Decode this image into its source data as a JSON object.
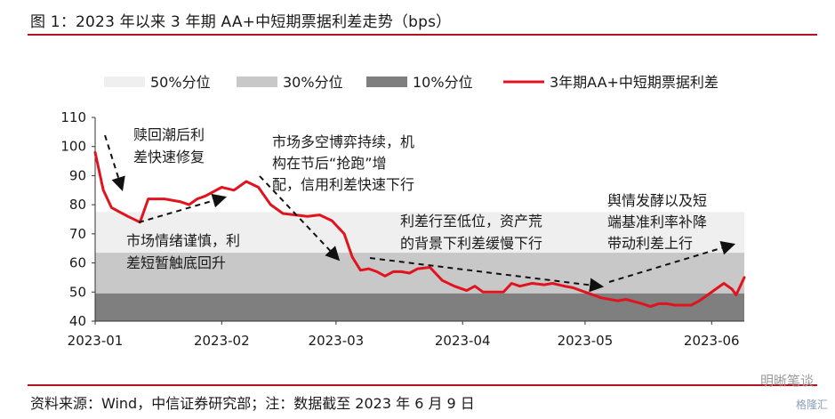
{
  "figure_title": "图 1：2023 年以来 3 年期 AA+中短期票据利差走势（bps）",
  "source_note": "资料来源：Wind，中信证券研究部；注：数据截至 2023 年 6 月 9 日",
  "watermark": "明晰笔谈",
  "watermark2": "格隆汇",
  "chart_data": {
    "type": "line",
    "title": "",
    "xlabel": "",
    "ylabel": "",
    "ylim": [
      40,
      110
    ],
    "y_ticks": [
      40,
      50,
      60,
      70,
      80,
      90,
      100,
      110
    ],
    "x_ticks": [
      "2023-01",
      "2023-02",
      "2023-03",
      "2023-04",
      "2023-05",
      "2023-06"
    ],
    "grid": false,
    "legend_position": "top",
    "bands": [
      {
        "name": "50%分位",
        "color": "#efefef",
        "upper": 77.5
      },
      {
        "name": "30%分位",
        "color": "#c8c8c8",
        "upper": 63.5
      },
      {
        "name": "10%分位",
        "color": "#7f7f7f",
        "upper": 49.5
      }
    ],
    "series": [
      {
        "name": "3年期AA+中短期票据利差",
        "color": "#e0141e",
        "x": [
          "2023-01-01",
          "2023-01-03",
          "2023-01-05",
          "2023-01-09",
          "2023-01-12",
          "2023-01-14",
          "2023-01-18",
          "2023-01-22",
          "2023-01-24",
          "2023-01-26",
          "2023-01-28",
          "2023-02-01",
          "2023-02-04",
          "2023-02-07",
          "2023-02-10",
          "2023-02-11",
          "2023-02-13",
          "2023-02-16",
          "2023-02-19",
          "2023-02-22",
          "2023-02-25",
          "2023-02-28",
          "2023-03-03",
          "2023-03-05",
          "2023-03-07",
          "2023-03-09",
          "2023-03-11",
          "2023-03-13",
          "2023-03-15",
          "2023-03-17",
          "2023-03-19",
          "2023-03-21",
          "2023-03-24",
          "2023-03-27",
          "2023-03-30",
          "2023-04-02",
          "2023-04-04",
          "2023-04-06",
          "2023-04-08",
          "2023-04-11",
          "2023-04-13",
          "2023-04-15",
          "2023-04-18",
          "2023-04-21",
          "2023-04-23",
          "2023-04-26",
          "2023-04-28",
          "2023-05-01",
          "2023-05-05",
          "2023-05-09",
          "2023-05-11",
          "2023-05-15",
          "2023-05-17",
          "2023-05-19",
          "2023-05-21",
          "2023-05-23",
          "2023-05-25",
          "2023-05-27",
          "2023-05-29",
          "2023-05-31",
          "2023-06-02",
          "2023-06-04",
          "2023-06-06",
          "2023-06-07",
          "2023-06-09"
        ],
        "y": [
          98,
          85,
          79,
          76,
          74,
          82,
          82,
          81,
          80,
          82,
          83,
          86,
          85,
          88,
          86,
          84,
          80,
          77,
          76.5,
          76,
          76.5,
          74.5,
          70,
          62,
          57.5,
          58,
          57,
          55.5,
          57,
          57,
          56.5,
          58,
          58.5,
          54,
          52,
          50.5,
          52,
          50,
          50,
          50,
          53,
          52,
          53,
          52.5,
          53,
          52,
          51.5,
          50,
          48,
          47,
          47.5,
          46,
          45,
          46,
          46,
          45.5,
          45.5,
          45.5,
          47,
          49,
          51,
          53,
          51,
          49,
          55
        ]
      }
    ],
    "annotations": [
      {
        "text": "赎回潮后利差快速修复",
        "lines": [
          "赎回潮后利",
          "差快速修复"
        ]
      },
      {
        "text": "市场情绪谨慎，利差短暂触底回升",
        "lines": [
          "市场情绪谨慎，利",
          "差短暂触底回升"
        ]
      },
      {
        "text": "市场多空博弈持续，机构在节后“抢跑”增配，信用利差快速下行",
        "lines": [
          "市场多空博弈持续，机",
          "构在节后“抢跑”增",
          "配，信用利差快速下行"
        ]
      },
      {
        "text": "利差行至低位，资产荒的背景下利差缓慢下行",
        "lines": [
          "利差行至低位，资产荒",
          "的背景下利差缓慢下行"
        ]
      },
      {
        "text": "舆情发酵以及短端基准利率补降带动利差上行",
        "lines": [
          "舆情发酵以及短",
          "端基准利率补降",
          "带动利差上行"
        ]
      }
    ]
  }
}
